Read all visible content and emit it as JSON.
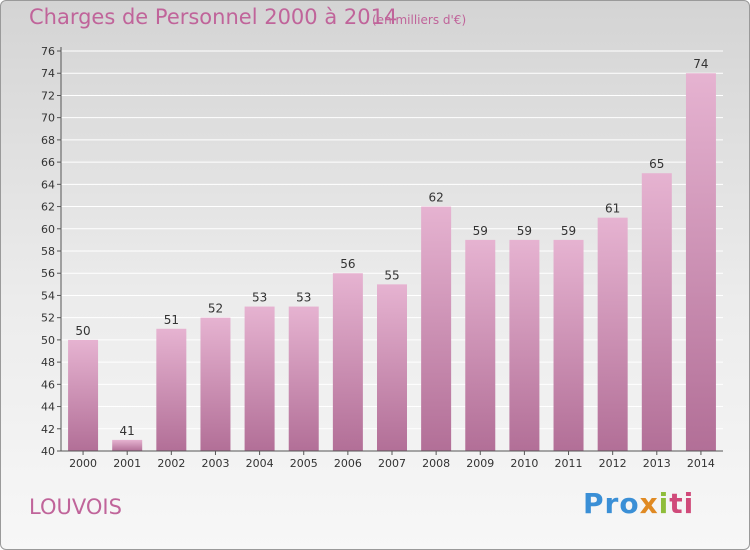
{
  "header": {
    "title": "Charges de Personnel 2000 à 2014",
    "subtitle": "(en milliers d'€)"
  },
  "footer": {
    "commune": "LOUVOIS",
    "brand": {
      "p1": "Pro",
      "p2": "x",
      "p3": "i",
      "p4": "ti"
    }
  },
  "colors": {
    "bar": "#d48bb5",
    "bar_top": "#e6b3d1",
    "bar_bottom": "#b26f97",
    "title": "#c0649a"
  },
  "chart_data": {
    "type": "bar",
    "title": "Charges de Personnel 2000 à 2014",
    "subtitle": "(en milliers d'€)",
    "categories": [
      "2000",
      "2001",
      "2002",
      "2003",
      "2004",
      "2005",
      "2006",
      "2007",
      "2008",
      "2009",
      "2010",
      "2011",
      "2012",
      "2013",
      "2014"
    ],
    "values": [
      50,
      41,
      51,
      52,
      53,
      53,
      56,
      55,
      62,
      59,
      59,
      59,
      61,
      65,
      74
    ],
    "ylim": [
      40,
      76
    ],
    "yticks": [
      40,
      42,
      44,
      46,
      48,
      50,
      52,
      54,
      56,
      58,
      60,
      62,
      64,
      66,
      68,
      70,
      72,
      74,
      76
    ],
    "grid": true,
    "xlabel": "",
    "ylabel": ""
  }
}
